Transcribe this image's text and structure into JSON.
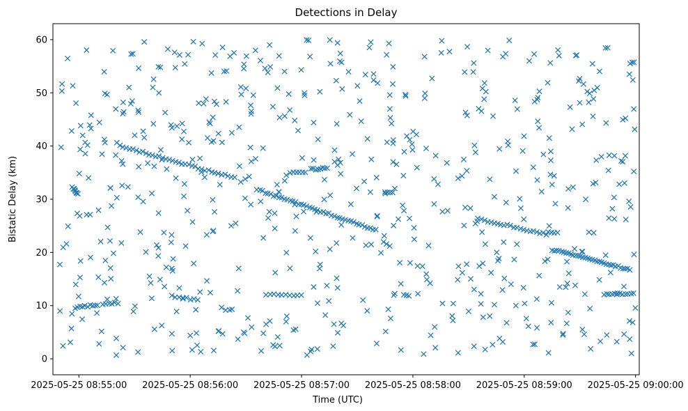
{
  "chart_data": {
    "type": "scatter",
    "title": "Detections in Delay",
    "xlabel": "Time (UTC)",
    "ylabel": "Bistatic Delay (km)",
    "marker": "x",
    "color": "#1f77b4",
    "x_unit": "seconds since 2025-05-25 08:54:00 UTC",
    "xlim": [
      46,
      362
    ],
    "ylim": [
      -3,
      63
    ],
    "xticks": [
      {
        "value": 60,
        "label": "2025-05-25 08:55:00"
      },
      {
        "value": 120,
        "label": "2025-05-25 08:56:00"
      },
      {
        "value": 180,
        "label": "2025-05-25 08:57:00"
      },
      {
        "value": 240,
        "label": "2025-05-25 08:58:00"
      },
      {
        "value": 300,
        "label": "2025-05-25 08:59:00"
      },
      {
        "value": 360,
        "label": "2025-05-25 09:00:00"
      }
    ],
    "yticks": [
      0,
      10,
      20,
      30,
      40,
      50,
      60
    ],
    "tracks": [
      {
        "name": "track-1",
        "t_start": 56.5,
        "t_end": 59.5,
        "y_start": 32.2,
        "y_end": 31.0,
        "count": 8
      },
      {
        "name": "track-2",
        "t_start": 82,
        "t_end": 144,
        "y_start": 40.0,
        "y_end": 34.0,
        "count": 36
      },
      {
        "name": "track-3",
        "t_start": 156,
        "t_end": 220,
        "y_start": 31.8,
        "y_end": 24.2,
        "count": 44
      },
      {
        "name": "track-4",
        "t_start": 275,
        "t_end": 312,
        "y_start": 26.3,
        "y_end": 23.4,
        "count": 22
      },
      {
        "name": "track-5",
        "t_start": 315,
        "t_end": 357,
        "y_start": 20.5,
        "y_end": 16.8,
        "count": 34
      },
      {
        "name": "track-6",
        "t_start": 58,
        "t_end": 70,
        "y_start": 9.6,
        "y_end": 10.2,
        "count": 10
      },
      {
        "name": "track-7",
        "t_start": 73,
        "t_end": 81,
        "y_start": 10.3,
        "y_end": 10.5,
        "count": 6
      },
      {
        "name": "track-8",
        "t_start": 110,
        "t_end": 124,
        "y_start": 11.8,
        "y_end": 11.0,
        "count": 8
      },
      {
        "name": "track-9",
        "t_start": 161,
        "t_end": 180,
        "y_start": 12.0,
        "y_end": 12.0,
        "count": 10
      },
      {
        "name": "track-10",
        "t_start": 174,
        "t_end": 182,
        "y_start": 35.0,
        "y_end": 35.2,
        "count": 6
      },
      {
        "name": "track-11",
        "t_start": 185,
        "t_end": 194,
        "y_start": 35.6,
        "y_end": 35.9,
        "count": 8
      },
      {
        "name": "track-12",
        "t_start": 225,
        "t_end": 229,
        "y_start": 31.5,
        "y_end": 31.2,
        "count": 4
      },
      {
        "name": "track-13",
        "t_start": 235,
        "t_end": 238,
        "y_start": 11.9,
        "y_end": 11.8,
        "count": 3
      },
      {
        "name": "track-14",
        "t_start": 343,
        "t_end": 359,
        "y_start": 12.2,
        "y_end": 12.2,
        "count": 12
      },
      {
        "name": "track-15",
        "t_start": 357,
        "t_end": 359,
        "y_start": 55.6,
        "y_end": 55.6,
        "count": 3
      },
      {
        "name": "track-16",
        "t_start": 313,
        "t_end": 318,
        "y_start": 23.8,
        "y_end": 23.6,
        "count": 4
      }
    ],
    "scatter_noise": {
      "count": 640,
      "t_range": [
        48,
        360
      ],
      "y_range": [
        0.5,
        60
      ],
      "seed": 20250525
    }
  }
}
